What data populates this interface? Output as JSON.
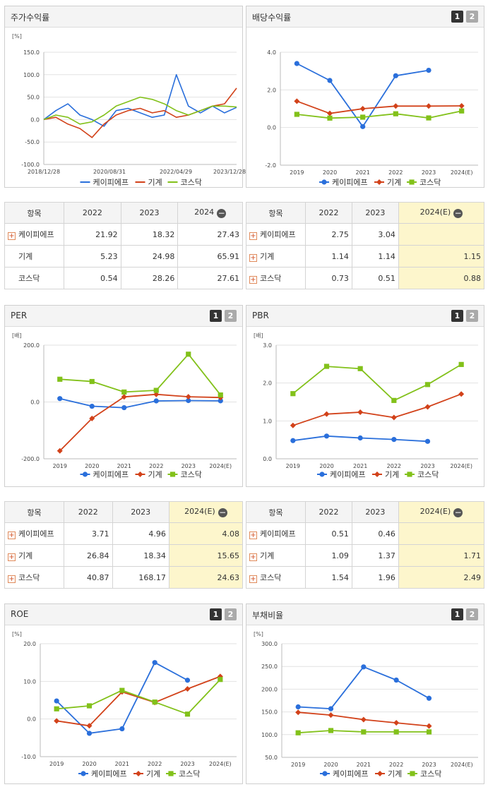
{
  "colors": {
    "company": "#2a6fdb",
    "industry": "#d2421a",
    "kosdaq": "#82c11a",
    "highlight": "#fdf6cc"
  },
  "legend": [
    "케이피에프",
    "기계",
    "코스닥"
  ],
  "pager": {
    "one": "1",
    "two": "2"
  },
  "panels": {
    "price_return": {
      "title": "주가수익률",
      "unit": "[%]",
      "yticks": [
        "150.0",
        "100.0",
        "50.0",
        "0.0",
        "-50.0",
        "-100.0"
      ],
      "xticks": [
        "2018/12/28",
        "2020/08/31",
        "2022/04/29",
        "2023/12/28"
      ]
    },
    "dividend": {
      "title": "배당수익률",
      "yticks": [
        "4.0",
        "2.0",
        "0.0",
        "-2.0"
      ],
      "xticks": [
        "2019",
        "2020",
        "2021",
        "2022",
        "2023",
        "2024(E)"
      ]
    },
    "per": {
      "title": "PER",
      "unit": "[배]",
      "yticks": [
        "200.0",
        "0.0",
        "-200.0"
      ],
      "xticks": [
        "2019",
        "2020",
        "2021",
        "2022",
        "2023",
        "2024(E)"
      ]
    },
    "pbr": {
      "title": "PBR",
      "unit": "[배]",
      "yticks": [
        "3.0",
        "2.0",
        "1.0",
        "0.0"
      ],
      "xticks": [
        "2019",
        "2020",
        "2021",
        "2022",
        "2023",
        "2024(E)"
      ]
    },
    "roe": {
      "title": "ROE",
      "unit": "[%]",
      "yticks": [
        "20.0",
        "10.0",
        "0.0",
        "-10.0"
      ],
      "xticks": [
        "2019",
        "2020",
        "2021",
        "2022",
        "2023",
        "2024(E)"
      ]
    },
    "debt": {
      "title": "부채비율",
      "unit": "[%]",
      "yticks": [
        "300.0",
        "250.0",
        "200.0",
        "150.0",
        "100.0",
        "50.0"
      ],
      "xticks": [
        "2019",
        "2020",
        "2021",
        "2022",
        "2023",
        "2024(E)"
      ]
    }
  },
  "tables": {
    "price_return": {
      "headers": [
        "항목",
        "2022",
        "2023",
        "2024"
      ],
      "rows": [
        {
          "name": "케이피에프",
          "v": [
            "21.92",
            "18.32",
            "27.43"
          ]
        },
        {
          "name": "기계",
          "v": [
            "5.23",
            "24.98",
            "65.91"
          ]
        },
        {
          "name": "코스닥",
          "v": [
            "0.54",
            "28.26",
            "27.61"
          ]
        }
      ]
    },
    "dividend": {
      "headers": [
        "항목",
        "2022",
        "2023",
        "2024(E)"
      ],
      "rows": [
        {
          "name": "케이피에프",
          "v": [
            "2.75",
            "3.04",
            ""
          ]
        },
        {
          "name": "기계",
          "v": [
            "1.14",
            "1.14",
            "1.15"
          ]
        },
        {
          "name": "코스닥",
          "v": [
            "0.73",
            "0.51",
            "0.88"
          ]
        }
      ]
    },
    "per": {
      "headers": [
        "항목",
        "2022",
        "2023",
        "2024(E)"
      ],
      "rows": [
        {
          "name": "케이피에프",
          "v": [
            "3.71",
            "4.96",
            "4.08"
          ]
        },
        {
          "name": "기계",
          "v": [
            "26.84",
            "18.34",
            "15.65"
          ]
        },
        {
          "name": "코스닥",
          "v": [
            "40.87",
            "168.17",
            "24.63"
          ]
        }
      ]
    },
    "pbr": {
      "headers": [
        "항목",
        "2022",
        "2023",
        "2024(E)"
      ],
      "rows": [
        {
          "name": "케이피에프",
          "v": [
            "0.51",
            "0.46",
            ""
          ]
        },
        {
          "name": "기계",
          "v": [
            "1.09",
            "1.37",
            "1.71"
          ]
        },
        {
          "name": "코스닥",
          "v": [
            "1.54",
            "1.96",
            "2.49"
          ]
        }
      ]
    }
  },
  "chart_data": [
    {
      "id": "price_return",
      "type": "line",
      "title": "주가수익률",
      "ylabel": "[%]",
      "ylim": [
        -100,
        150
      ],
      "x": [
        "2018/12/28",
        "2019/04",
        "2019/08",
        "2019/12",
        "2020/04",
        "2020/08/31",
        "2020/12",
        "2021/04",
        "2021/08",
        "2021/12",
        "2022/04/29",
        "2022/08",
        "2022/12",
        "2023/04",
        "2023/08",
        "2023/12/28",
        "2024/04"
      ],
      "series": [
        {
          "name": "케이피에프",
          "values": [
            0,
            20,
            35,
            10,
            0,
            -15,
            20,
            25,
            15,
            5,
            10,
            100,
            30,
            15,
            30,
            15,
            27
          ]
        },
        {
          "name": "기계",
          "values": [
            0,
            5,
            -10,
            -20,
            -40,
            -10,
            10,
            20,
            25,
            15,
            20,
            5,
            10,
            20,
            30,
            35,
            70
          ]
        },
        {
          "name": "코스닥",
          "values": [
            0,
            10,
            5,
            -10,
            -5,
            10,
            30,
            40,
            50,
            45,
            35,
            20,
            10,
            20,
            30,
            30,
            28
          ]
        }
      ]
    },
    {
      "id": "dividend",
      "type": "line",
      "title": "배당수익률",
      "ylim": [
        -2,
        4
      ],
      "x": [
        "2019",
        "2020",
        "2021",
        "2022",
        "2023",
        "2024(E)"
      ],
      "series": [
        {
          "name": "케이피에프",
          "values": [
            3.4,
            2.5,
            0.05,
            2.75,
            3.04,
            null
          ]
        },
        {
          "name": "기계",
          "values": [
            1.4,
            0.75,
            1.0,
            1.14,
            1.14,
            1.15
          ]
        },
        {
          "name": "코스닥",
          "values": [
            0.7,
            0.5,
            0.55,
            0.73,
            0.51,
            0.88
          ]
        }
      ]
    },
    {
      "id": "per",
      "type": "line",
      "title": "PER",
      "ylabel": "[배]",
      "ylim": [
        -200,
        200
      ],
      "x": [
        "2019",
        "2020",
        "2021",
        "2022",
        "2023",
        "2024(E)"
      ],
      "series": [
        {
          "name": "케이피에프",
          "values": [
            12,
            -15,
            -20,
            3.71,
            4.96,
            4.08
          ]
        },
        {
          "name": "기계",
          "values": [
            -172,
            -58,
            18,
            26.84,
            18.34,
            15.65
          ]
        },
        {
          "name": "코스닥",
          "values": [
            80,
            72,
            35,
            40.87,
            168.17,
            24.63
          ]
        }
      ]
    },
    {
      "id": "pbr",
      "type": "line",
      "title": "PBR",
      "ylabel": "[배]",
      "ylim": [
        0,
        3
      ],
      "x": [
        "2019",
        "2020",
        "2021",
        "2022",
        "2023",
        "2024(E)"
      ],
      "series": [
        {
          "name": "케이피에프",
          "values": [
            0.48,
            0.6,
            0.55,
            0.51,
            0.46,
            null
          ]
        },
        {
          "name": "기계",
          "values": [
            0.88,
            1.18,
            1.23,
            1.09,
            1.37,
            1.71
          ]
        },
        {
          "name": "코스닥",
          "values": [
            1.72,
            2.44,
            2.38,
            1.54,
            1.96,
            2.49
          ]
        }
      ]
    },
    {
      "id": "roe",
      "type": "line",
      "title": "ROE",
      "ylabel": "[%]",
      "ylim": [
        -10,
        20
      ],
      "x": [
        "2019",
        "2020",
        "2021",
        "2022",
        "2023",
        "2024(E)"
      ],
      "series": [
        {
          "name": "케이피에프",
          "values": [
            4.8,
            -3.8,
            -2.6,
            15.0,
            10.3,
            null
          ]
        },
        {
          "name": "기계",
          "values": [
            -0.5,
            -1.8,
            7.2,
            4.4,
            8.0,
            11.3
          ]
        },
        {
          "name": "코스닥",
          "values": [
            2.7,
            3.5,
            7.6,
            4.5,
            1.3,
            10.5
          ]
        }
      ]
    },
    {
      "id": "debt",
      "type": "line",
      "title": "부채비율",
      "ylabel": "[%]",
      "ylim": [
        50,
        300
      ],
      "x": [
        "2019",
        "2020",
        "2021",
        "2022",
        "2023",
        "2024(E)"
      ],
      "series": [
        {
          "name": "케이피에프",
          "values": [
            161,
            157,
            249,
            220,
            180,
            null
          ]
        },
        {
          "name": "기계",
          "values": [
            149,
            143,
            133,
            126,
            119,
            null
          ]
        },
        {
          "name": "코스닥",
          "values": [
            104,
            109,
            106,
            106,
            106,
            null
          ]
        }
      ]
    }
  ]
}
